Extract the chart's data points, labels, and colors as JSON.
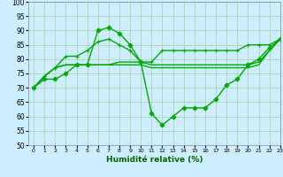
{
  "xlabel": "Humidité relative (%)",
  "bg_color": "#cceeff",
  "grid_color": "#aaccaa",
  "line_color": "#00aa00",
  "xlim": [
    -0.5,
    23
  ],
  "ylim": [
    50,
    100
  ],
  "yticks": [
    50,
    55,
    60,
    65,
    70,
    75,
    80,
    85,
    90,
    95,
    100
  ],
  "xticks": [
    0,
    1,
    2,
    3,
    4,
    5,
    6,
    7,
    8,
    9,
    10,
    11,
    12,
    13,
    14,
    15,
    16,
    17,
    18,
    19,
    20,
    21,
    22,
    23
  ],
  "series": [
    {
      "x": [
        0,
        1,
        2,
        3,
        4,
        5,
        6,
        7,
        8,
        9,
        10,
        11,
        12,
        13,
        14,
        15,
        16,
        17,
        18,
        19,
        20,
        21,
        22,
        23
      ],
      "y": [
        70,
        73,
        73,
        75,
        78,
        78,
        90,
        91,
        89,
        85,
        79,
        61,
        57,
        60,
        63,
        63,
        63,
        66,
        71,
        73,
        78,
        80,
        84,
        87
      ],
      "marker": "D",
      "ms": 2.5,
      "lw": 1.0
    },
    {
      "x": [
        0,
        1,
        2,
        3,
        4,
        5,
        6,
        7,
        8,
        9,
        10,
        11,
        12,
        13,
        14,
        15,
        16,
        17,
        18,
        19,
        20,
        21,
        22,
        23
      ],
      "y": [
        70,
        74,
        77,
        81,
        81,
        83,
        86,
        87,
        85,
        83,
        79,
        79,
        83,
        83,
        83,
        83,
        83,
        83,
        83,
        83,
        85,
        85,
        85,
        87
      ],
      "marker": "+",
      "ms": 3.0,
      "lw": 1.0
    },
    {
      "x": [
        0,
        1,
        2,
        3,
        4,
        5,
        6,
        7,
        8,
        9,
        10,
        11,
        12,
        13,
        14,
        15,
        16,
        17,
        18,
        19,
        20,
        21,
        22,
        23
      ],
      "y": [
        70,
        74,
        77,
        78,
        78,
        78,
        78,
        78,
        78,
        78,
        78,
        77,
        77,
        77,
        77,
        77,
        77,
        77,
        77,
        77,
        77,
        78,
        83,
        87
      ],
      "marker": null,
      "ms": 0,
      "lw": 1.0
    },
    {
      "x": [
        0,
        1,
        2,
        3,
        4,
        5,
        6,
        7,
        8,
        9,
        10,
        11,
        12,
        13,
        14,
        15,
        16,
        17,
        18,
        19,
        20,
        21,
        22,
        23
      ],
      "y": [
        70,
        74,
        77,
        78,
        78,
        78,
        78,
        78,
        79,
        79,
        79,
        78,
        78,
        78,
        78,
        78,
        78,
        78,
        78,
        78,
        78,
        79,
        83,
        87
      ],
      "marker": null,
      "ms": 0,
      "lw": 1.0
    }
  ]
}
